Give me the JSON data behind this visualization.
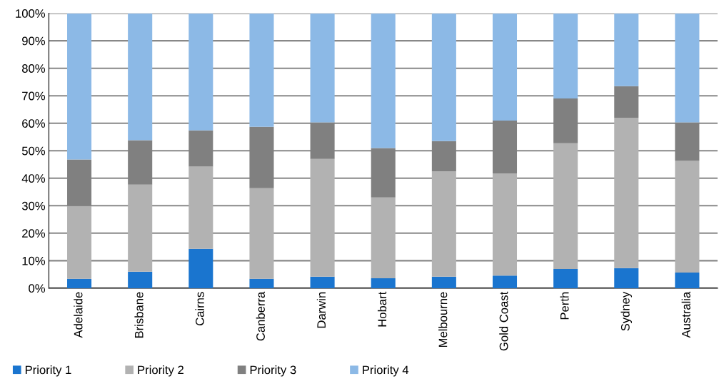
{
  "chart_data": {
    "type": "bar",
    "stacked": true,
    "categories": [
      "Adelaide",
      "Brisbane",
      "Cairns",
      "Canberra",
      "Darwin",
      "Hobart",
      "Melbourne",
      "Gold Coast",
      "Perth",
      "Sydney",
      "Australia"
    ],
    "series": [
      {
        "name": "Priority 1",
        "color": "#1a75cf",
        "values": [
          3.4,
          6.0,
          14.3,
          3.4,
          4.2,
          3.6,
          4.2,
          4.6,
          7.0,
          7.3,
          5.7
        ]
      },
      {
        "name": "Priority 2",
        "color": "#b2b2b2",
        "values": [
          26.5,
          31.7,
          29.9,
          33.0,
          42.8,
          29.4,
          38.3,
          37.1,
          45.7,
          54.7,
          40.6
        ]
      },
      {
        "name": "Priority 3",
        "color": "#808080",
        "values": [
          16.9,
          16.1,
          13.2,
          22.3,
          13.3,
          18.0,
          11.0,
          19.3,
          16.3,
          11.5,
          14.0
        ]
      },
      {
        "name": "Priority 4",
        "color": "#8cb9e6",
        "values": [
          53.2,
          46.2,
          42.6,
          41.3,
          39.7,
          49.0,
          46.5,
          39.0,
          31.0,
          26.5,
          39.7
        ]
      }
    ],
    "ylim": [
      0,
      100
    ],
    "yticks": [
      {
        "value": 0,
        "label": "0%"
      },
      {
        "value": 10,
        "label": "10%"
      },
      {
        "value": 20,
        "label": "20%"
      },
      {
        "value": 30,
        "label": "30%"
      },
      {
        "value": 40,
        "label": "40%"
      },
      {
        "value": 50,
        "label": "50%"
      },
      {
        "value": 60,
        "label": "60%"
      },
      {
        "value": 70,
        "label": "70%"
      },
      {
        "value": 80,
        "label": "80%"
      },
      {
        "value": 90,
        "label": "90%"
      },
      {
        "value": 100,
        "label": "100%"
      }
    ],
    "grid": "y",
    "legend": "bottom"
  }
}
